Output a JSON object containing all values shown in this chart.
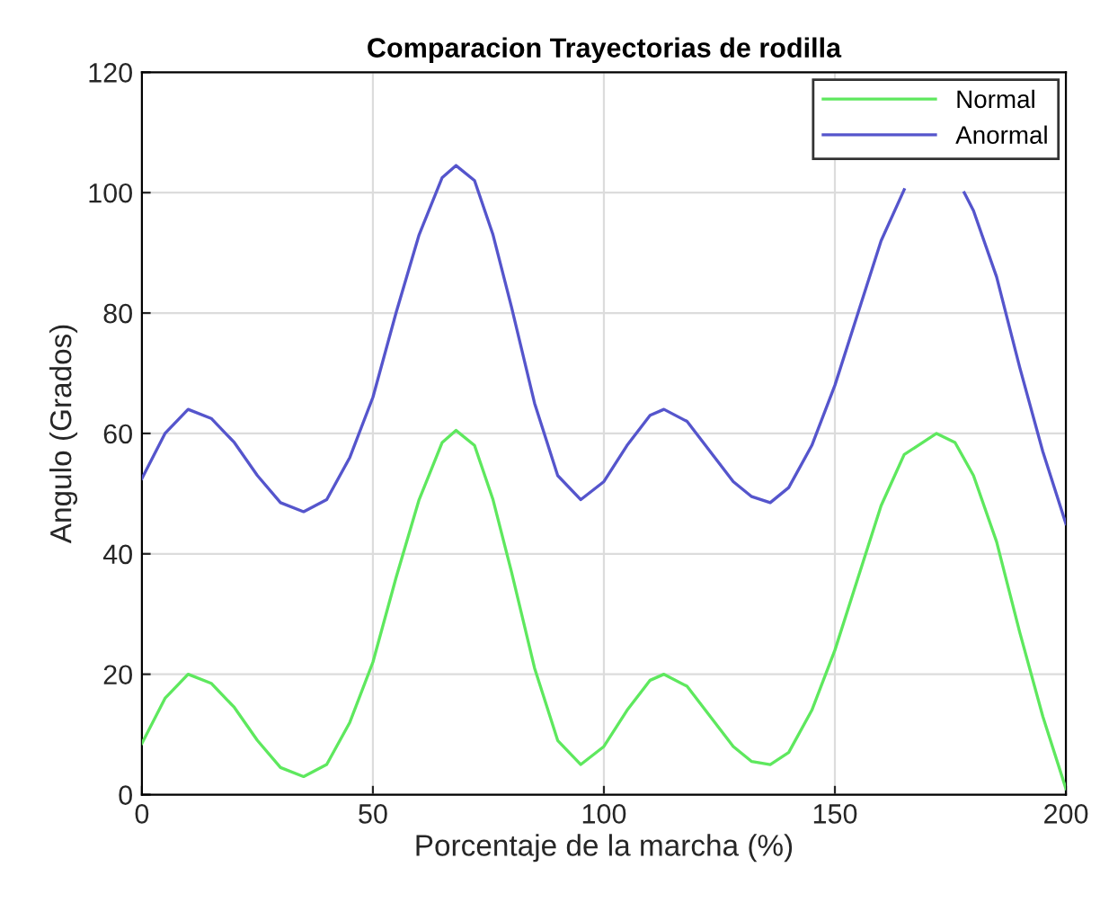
{
  "chart_data": {
    "type": "line",
    "title": "Comparacion Trayectorias de rodilla",
    "xlabel": "Porcentaje de la marcha (%)",
    "ylabel": "Angulo (Grados)",
    "xlim": [
      0,
      200
    ],
    "ylim": [
      0,
      120
    ],
    "xticks": [
      0,
      50,
      100,
      150,
      200
    ],
    "yticks": [
      0,
      20,
      40,
      60,
      80,
      100,
      120
    ],
    "grid": true,
    "legend": "top right",
    "marker": "none",
    "line_style": "solid",
    "series": [
      {
        "name": "Normal",
        "color": "#5ee85e",
        "x": [
          0,
          5,
          10,
          15,
          20,
          25,
          30,
          35,
          40,
          45,
          50,
          55,
          60,
          65,
          68,
          72,
          76,
          80,
          85,
          90,
          95,
          100,
          105,
          110,
          113,
          118,
          123,
          128,
          132,
          136,
          140,
          145,
          150,
          155,
          160,
          165,
          172,
          176,
          180,
          185,
          190,
          195,
          200
        ],
        "values": [
          8.5,
          16,
          20,
          18.5,
          14.5,
          9,
          4.5,
          3,
          5,
          12,
          22,
          36,
          49,
          58.5,
          60.5,
          58,
          49,
          37,
          21,
          9,
          5,
          8,
          14,
          19,
          20,
          18,
          13,
          8,
          5.5,
          5,
          7,
          14,
          24,
          36,
          48,
          56.5,
          60,
          58.5,
          53,
          42,
          27,
          13,
          1
        ]
      },
      {
        "name": "Anormal",
        "color": "#5555cc",
        "x": [
          0,
          5,
          10,
          15,
          20,
          25,
          30,
          35,
          40,
          45,
          50,
          55,
          60,
          65,
          68,
          72,
          76,
          80,
          85,
          90,
          95,
          100,
          105,
          110,
          113,
          118,
          123,
          128,
          132,
          136,
          140,
          145,
          150,
          155,
          160,
          165,
          172,
          178,
          180,
          185,
          190,
          195,
          200
        ],
        "values": [
          52.5,
          60,
          64,
          62.5,
          58.5,
          53,
          48.5,
          47,
          49,
          56,
          66,
          80,
          93,
          102.5,
          104.5,
          102,
          93,
          81,
          65,
          53,
          49,
          52,
          58,
          63,
          64,
          62,
          57,
          52,
          49.5,
          48.5,
          51,
          58,
          68,
          80,
          92,
          100.5,
          null,
          100,
          97,
          86,
          71,
          57,
          45
        ]
      }
    ]
  }
}
